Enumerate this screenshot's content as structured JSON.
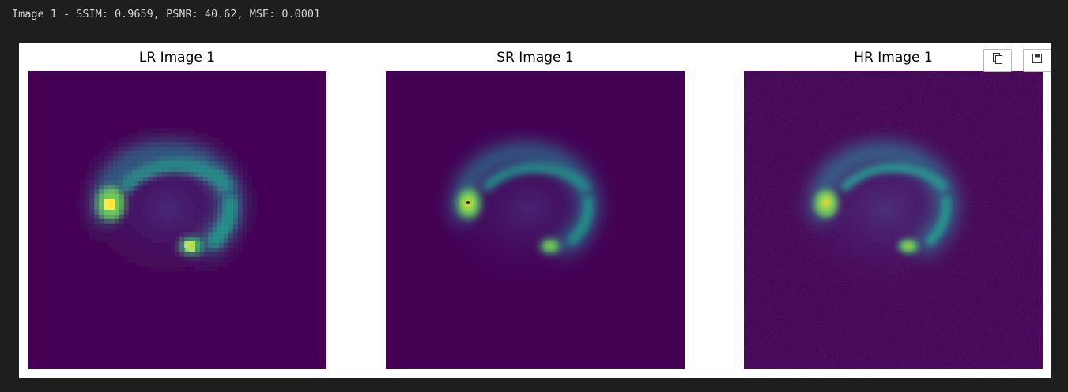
{
  "output": {
    "text": "Image 1 - SSIM: 0.9659, PSNR: 40.62, MSE: 0.0001"
  },
  "panels": [
    {
      "title": "LR Image 1",
      "variant": "pixelated"
    },
    {
      "title": "SR Image 1",
      "variant": "smooth"
    },
    {
      "title": "HR Image 1",
      "variant": "noisy"
    }
  ],
  "toolbar": {
    "buttons": [
      {
        "icon": "copy-icon"
      },
      {
        "icon": "save-icon"
      }
    ]
  },
  "colormap": {
    "name": "viridis",
    "background": "#440154",
    "ring": "#31688e",
    "ring_bright": "#21918c",
    "peak": "#fde725"
  }
}
